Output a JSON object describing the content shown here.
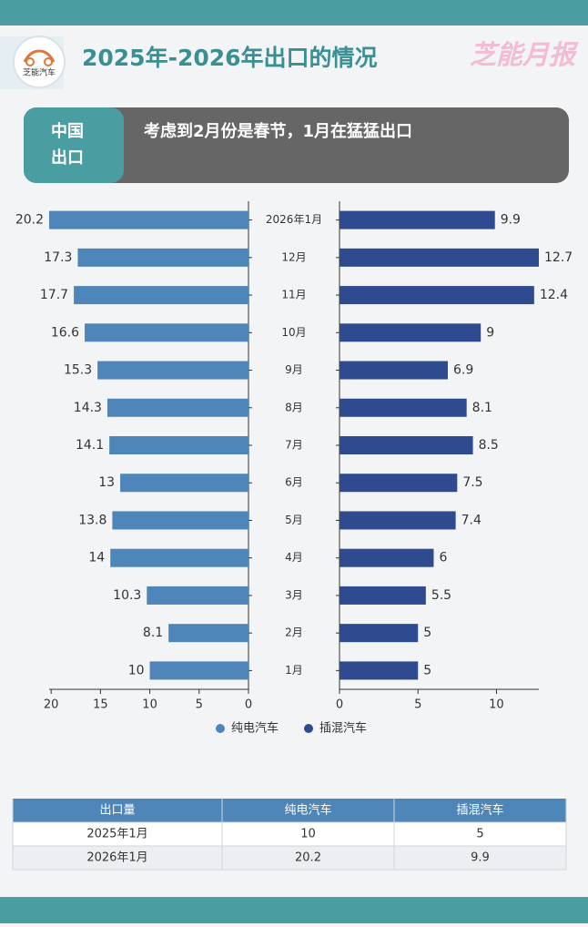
{
  "header": {
    "logo_text": "芝能汽车",
    "title": "2025年-2026年出口的情况",
    "brand": "芝能月报"
  },
  "banner": {
    "tag": [
      "中国",
      "出口"
    ],
    "text": "考虑到2月份是春节，1月在猛猛出口"
  },
  "chart_data": {
    "type": "bar",
    "orientation": "horizontal",
    "categories": [
      "2026年1月",
      "12月",
      "11月",
      "10月",
      "9月",
      "8月",
      "7月",
      "6月",
      "5月",
      "4月",
      "3月",
      "2月",
      "1月"
    ],
    "series": [
      {
        "name": "纯电汽车",
        "color": "#4f86b9",
        "values": [
          20.2,
          17.3,
          17.7,
          16.6,
          15.3,
          14.3,
          14.1,
          13,
          13.8,
          14,
          10.3,
          8.1,
          10
        ],
        "xlim": [
          0,
          20.2
        ],
        "xticks": [
          0,
          5,
          10,
          15,
          20
        ]
      },
      {
        "name": "插混汽车",
        "color": "#2f4a8f",
        "values": [
          9.9,
          12.7,
          12.4,
          9,
          6.9,
          8.1,
          8.5,
          7.5,
          7.4,
          6,
          5.5,
          5,
          5
        ],
        "xlim": [
          0,
          12.7
        ],
        "xticks": [
          0,
          5,
          10
        ]
      }
    ],
    "legend": "bottom"
  },
  "table": {
    "columns": [
      "出口量",
      "纯电汽车",
      "插混汽车"
    ],
    "rows": [
      [
        "2025年1月",
        10,
        5
      ],
      [
        "2026年1月",
        20.2,
        9.9
      ]
    ]
  }
}
